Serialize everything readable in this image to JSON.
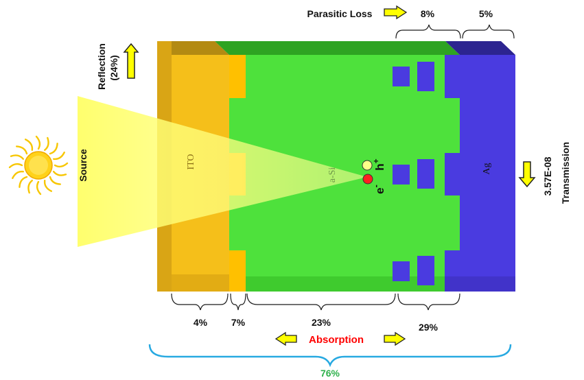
{
  "layers": {
    "ito": "ITO",
    "asi": "a-Si",
    "ag": "Ag"
  },
  "source": {
    "label": "Source",
    "icon": "sun-icon"
  },
  "reflection": {
    "label": "Reflection",
    "value": "(24%)"
  },
  "transmission": {
    "label": "Transmission",
    "value": "3.57E-08"
  },
  "parasitic_loss": {
    "label": "Parasitic Loss",
    "top_left": "8%",
    "top_right": "5%"
  },
  "bottom_percentages": {
    "ito": "4%",
    "interface": "7%",
    "asi": "23%",
    "grating": "29%"
  },
  "absorption": {
    "label": "Absorption",
    "total": "76%"
  },
  "carriers": {
    "electron": "e",
    "electron_sign": "-",
    "hole": "h",
    "hole_sign": "+"
  },
  "colors": {
    "ito": "#f5bf1a",
    "ito_dark": "#c99a10",
    "asi": "#4ee13c",
    "asi_dark": "#2fae22",
    "ag": "#4a3be0",
    "ag_dark": "#2c2490",
    "arrow_fill": "#ffff00",
    "absorption_text": "#ff0000",
    "total_text": "#2db04b",
    "big_brace": "#27a9e1"
  }
}
